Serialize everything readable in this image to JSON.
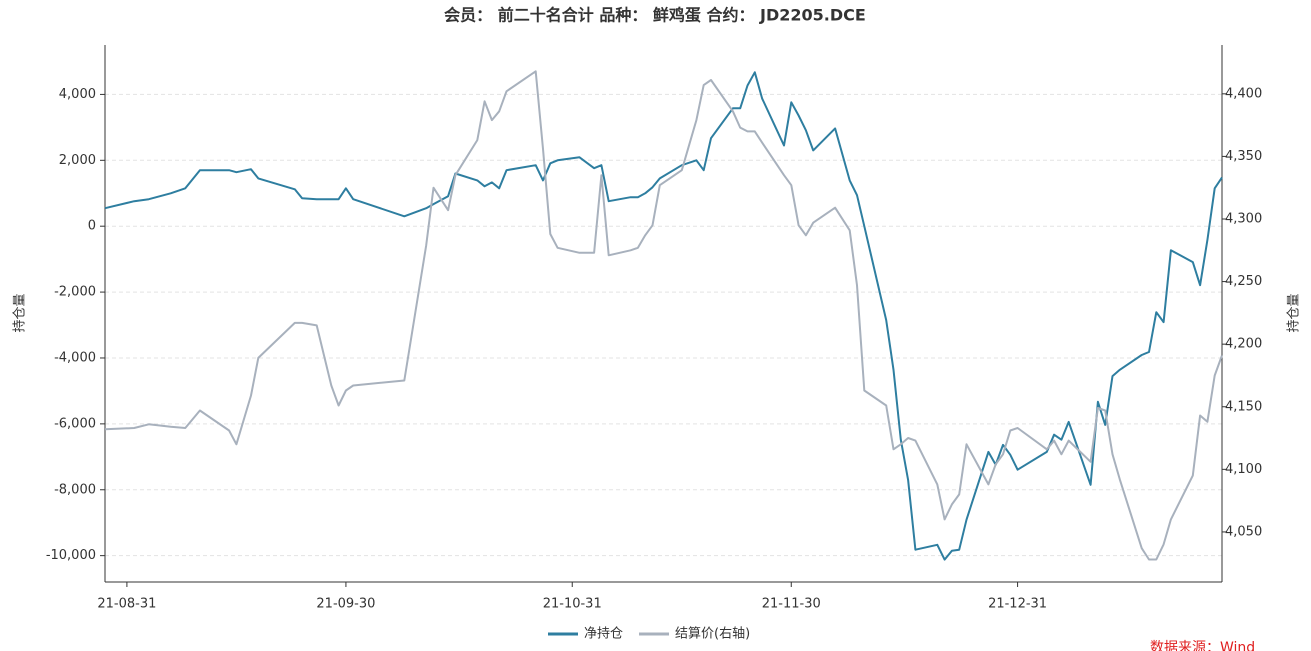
{
  "chart_data": {
    "type": "line",
    "title": "会员： 前二十名合计 品种： 鲜鸡蛋 合约： JD2205.DCE",
    "ylabel": "持仓量",
    "y2label": "持仓量",
    "source": "数据来源：Wind",
    "x": [
      "21-08-28",
      "21-09-01",
      "21-09-03",
      "21-09-06",
      "21-09-08",
      "21-09-10",
      "21-09-14",
      "21-09-15",
      "21-09-17",
      "21-09-18",
      "21-09-23",
      "21-09-24",
      "21-09-26",
      "21-09-28",
      "21-09-29",
      "21-09-30",
      "21-10-01",
      "21-10-08",
      "21-10-11",
      "21-10-12",
      "21-10-14",
      "21-10-15",
      "21-10-18",
      "21-10-19",
      "21-10-20",
      "21-10-21",
      "21-10-22",
      "21-10-26",
      "21-10-27",
      "21-10-28",
      "21-10-29",
      "21-11-01",
      "21-11-03",
      "21-11-04",
      "21-11-05",
      "21-11-08",
      "21-11-09",
      "21-11-10",
      "21-11-11",
      "21-11-12",
      "21-11-15",
      "21-11-17",
      "21-11-18",
      "21-11-19",
      "21-11-22",
      "21-11-23",
      "21-11-24",
      "21-11-25",
      "21-11-26",
      "21-11-29",
      "21-11-30",
      "21-12-01",
      "21-12-02",
      "21-12-03",
      "21-12-06",
      "21-12-08",
      "21-12-09",
      "21-12-10",
      "21-12-13",
      "21-12-14",
      "21-12-15",
      "21-12-16",
      "21-12-17",
      "21-12-20",
      "21-12-21",
      "21-12-22",
      "21-12-23",
      "21-12-24",
      "21-12-27",
      "21-12-28",
      "21-12-29",
      "21-12-30",
      "21-12-31",
      "22-01-04",
      "22-01-05",
      "22-01-06",
      "22-01-07",
      "22-01-10",
      "22-01-11",
      "22-01-12",
      "22-01-13",
      "22-01-14",
      "22-01-17",
      "22-01-18",
      "22-01-19",
      "22-01-20",
      "22-01-21",
      "22-01-24",
      "22-01-25",
      "22-01-26",
      "22-01-27",
      "22-01-28"
    ],
    "series": [
      {
        "name": "净持仓",
        "color": "#2e7ea0",
        "values": [
          545,
          760,
          820,
          1000,
          1150,
          1700,
          1700,
          1640,
          1730,
          1450,
          1120,
          850,
          820,
          820,
          820,
          1150,
          820,
          300,
          545,
          670,
          910,
          1600,
          1390,
          1210,
          1330,
          1150,
          1700,
          1850,
          1390,
          1910,
          2000,
          2090,
          1760,
          1850,
          760,
          880,
          880,
          1000,
          1180,
          1450,
          1850,
          2000,
          1700,
          2670,
          3580,
          3580,
          4270,
          4670,
          3880,
          2450,
          3760,
          3360,
          2910,
          2300,
          2970,
          1390,
          940,
          0,
          -2850,
          -4360,
          -6480,
          -7700,
          -9820,
          -9670,
          -10120,
          -9850,
          -9820,
          -8910,
          -6850,
          -7240,
          -6640,
          -6940,
          -7390,
          -6850,
          -6330,
          -6480,
          -5940,
          -7850,
          -5330,
          -6030,
          -4550,
          -4360,
          -3910,
          -3820,
          -2610,
          -2910,
          -730,
          -1090,
          -1790,
          -420,
          1150,
          1480
        ]
      },
      {
        "name": "结算价(右轴)",
        "color": "#a8b1bd",
        "axis": "y2",
        "values": [
          4132,
          4133,
          4136,
          4134,
          4133,
          4147,
          4131,
          4120,
          4159,
          4189,
          4217,
          4217,
          4215,
          4167,
          4151,
          4163,
          4167,
          4171,
          4279,
          4325,
          4307,
          4335,
          4363,
          4394,
          4379,
          4386,
          4402,
          4418,
          4356,
          4288,
          4277,
          4273,
          4273,
          4335,
          4271,
          4275,
          4277,
          4287,
          4295,
          4327,
          4339,
          4379,
          4407,
          4411,
          4386,
          4373,
          4370,
          4370,
          4361,
          4335,
          4327,
          4295,
          4287,
          4297,
          4309,
          4291,
          4247,
          4163,
          4151,
          4116,
          4120,
          4125,
          4123,
          4088,
          4060,
          4072,
          4080,
          4120,
          4088,
          4104,
          4112,
          4131,
          4133,
          4116,
          4123,
          4112,
          4123,
          4106,
          4149,
          4147,
          4112,
          4092,
          4037,
          4028,
          4028,
          4040,
          4060,
          4095,
          4143,
          4138,
          4175,
          4191
        ]
      }
    ],
    "xlim": [
      "21-08-28",
      "22-01-28"
    ],
    "xticks": [
      "21-08-31",
      "21-09-30",
      "21-10-31",
      "21-11-30",
      "21-12-31"
    ],
    "ylim": [
      -10800,
      5500
    ],
    "yticks": [
      {
        "value": -10000,
        "label": "-10,000"
      },
      {
        "value": -8000,
        "label": "-8,000"
      },
      {
        "value": -6000,
        "label": "-6,000"
      },
      {
        "value": -4000,
        "label": "-4,000"
      },
      {
        "value": -2000,
        "label": "-2,000"
      },
      0,
      {
        "value": 2000,
        "label": "2,000"
      },
      {
        "value": 4000,
        "label": "4,000"
      }
    ],
    "y2lim": [
      4010,
      4439
    ],
    "y2ticks": [
      {
        "value": 4050,
        "label": "4,050"
      },
      {
        "value": 4100,
        "label": "4,100"
      },
      {
        "value": 4150,
        "label": "4,150"
      },
      {
        "value": 4200,
        "label": "4,200"
      },
      {
        "value": 4250,
        "label": "4,250"
      },
      {
        "value": 4300,
        "label": "4,300"
      },
      {
        "value": 4350,
        "label": "4,350"
      },
      {
        "value": 4400,
        "label": "4,400"
      }
    ],
    "grid": true,
    "legend": "bottom"
  }
}
